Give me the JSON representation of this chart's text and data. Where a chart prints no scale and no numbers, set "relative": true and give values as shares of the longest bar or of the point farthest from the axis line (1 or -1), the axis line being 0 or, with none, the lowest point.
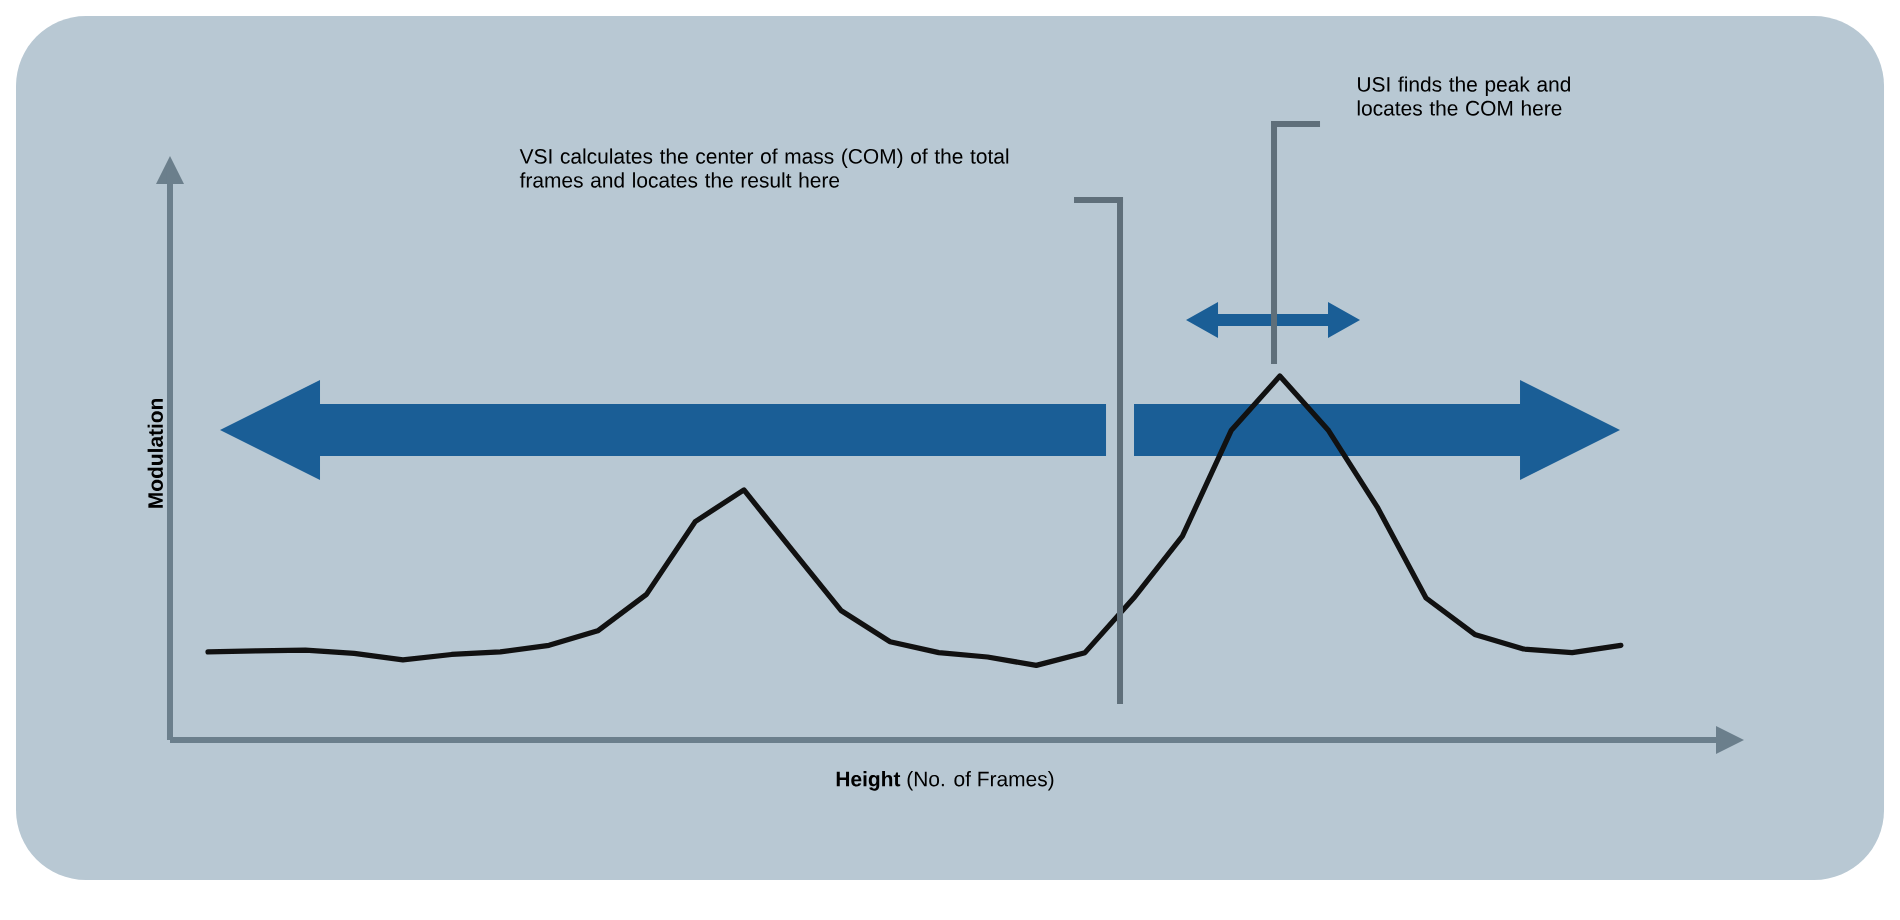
{
  "chart_data": {
    "type": "line",
    "relative": true,
    "xlabel": "**Height** (No. of Frames)",
    "ylabel": "Modulation",
    "categories": [
      null,
      null,
      null,
      null,
      null,
      null,
      null,
      null,
      null,
      null,
      null,
      null,
      null,
      null,
      null,
      null,
      null,
      null,
      null,
      null,
      null,
      null,
      null,
      null,
      null,
      null,
      null,
      null,
      null,
      null
    ],
    "series": [
      {
        "color": "#111111",
        "values": [
          0.242,
          0.245,
          0.247,
          0.238,
          0.22,
          0.235,
          0.242,
          0.26,
          0.3,
          0.4,
          0.6,
          0.687,
          0.52,
          0.355,
          0.27,
          0.24,
          0.228,
          0.205,
          0.24,
          0.39,
          0.56,
          0.85,
          1,
          0.85,
          0.64,
          0.39,
          0.29,
          0.25,
          0.24,
          0.26
        ]
      }
    ],
    "annotations": [
      "VSI calculates the center of mass (COM) of the total frames and locates the result here",
      "USI finds the peak and locates the COM here"
    ]
  }
}
